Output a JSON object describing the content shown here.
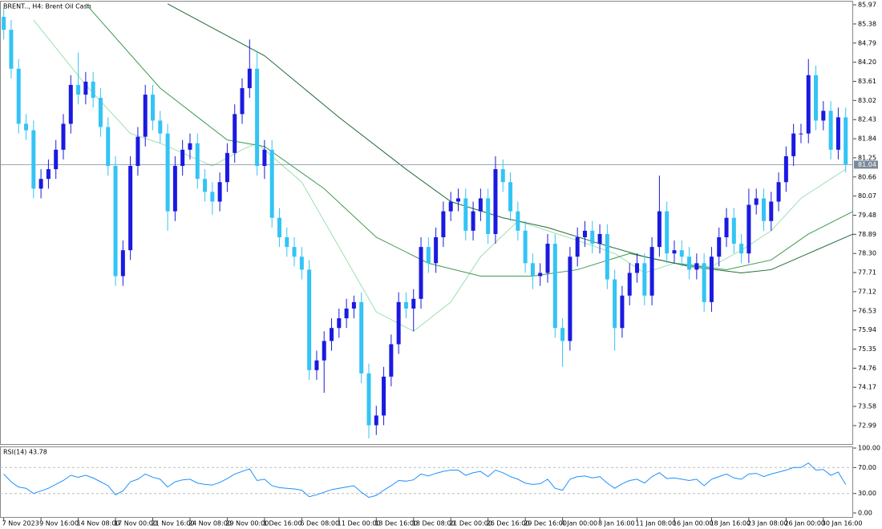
{
  "chart_data": {
    "type": "candlestick",
    "title": "BRENT.., H4:  Brent Oil Cash",
    "up_color": "#1a1ae0",
    "down_color": "#33c4f5",
    "xlim": [
      -0.5,
      114
    ],
    "xticks": [
      {
        "value": 0,
        "label": "7 Nov 2023"
      },
      {
        "value": 5,
        "label": "9 Nov 16:00"
      },
      {
        "value": 10,
        "label": "14 Nov 08:00"
      },
      {
        "value": 15,
        "label": "17 Nov 00:00"
      },
      {
        "value": 20,
        "label": "21 Nov 16:00"
      },
      {
        "value": 25,
        "label": "24 Nov 08:00"
      },
      {
        "value": 30,
        "label": "29 Nov 00:00"
      },
      {
        "value": 35,
        "label": "1 Dec 16:00"
      },
      {
        "value": 40,
        "label": "6 Dec 08:00"
      },
      {
        "value": 45,
        "label": "11 Dec 00:00"
      },
      {
        "value": 50,
        "label": "13 Dec 16:00"
      },
      {
        "value": 55,
        "label": "18 Dec 08:00"
      },
      {
        "value": 60,
        "label": "21 Dec 00:00"
      },
      {
        "value": 65,
        "label": "26 Dec 16:00"
      },
      {
        "value": 70,
        "label": "29 Dec 16:00"
      },
      {
        "value": 75,
        "label": "4 Jan 00:00"
      },
      {
        "value": 80,
        "label": "8 Jan 16:00"
      },
      {
        "value": 85,
        "label": "11 Jan 08:00"
      },
      {
        "value": 90,
        "label": "16 Jan 00:00"
      },
      {
        "value": 95,
        "label": "18 Jan 16:00"
      },
      {
        "value": 100,
        "label": "23 Jan 08:00"
      },
      {
        "value": 105,
        "label": "26 Jan 00:00"
      },
      {
        "value": 110,
        "label": "30 Jan 16:00"
      }
    ],
    "ylim": [
      72.42,
      86.07
    ],
    "yticks": [
      85.97,
      85.38,
      84.79,
      {
        "value": 84.2,
        "label": "84.20"
      },
      83.61,
      83.02,
      82.43,
      81.84,
      81.25,
      80.66,
      80.07,
      79.48,
      78.89,
      {
        "value": 78.3,
        "label": "78.30"
      },
      77.71,
      77.12,
      76.53,
      75.94,
      75.35,
      74.76,
      74.17,
      73.58,
      72.99
    ],
    "current_price": 81.04,
    "open": [
      85.6,
      85.2,
      84.0,
      82.3,
      82.1,
      80.3,
      80.6,
      80.9,
      81.5,
      82.3,
      83.5,
      83.2,
      83.6,
      83.1,
      82.2,
      81.0,
      77.6,
      78.4,
      81.0,
      81.9,
      83.2,
      82.4,
      82.0,
      79.6,
      81.0,
      81.5,
      81.7,
      80.6,
      80.2,
      79.9,
      80.5,
      81.4,
      82.6,
      83.4,
      84.0,
      81.0,
      81.5,
      79.4,
      78.8,
      78.5,
      78.2,
      77.8,
      74.7,
      75.0,
      75.6,
      76.0,
      76.3,
      76.6,
      76.8,
      74.6,
      73.0,
      73.3,
      74.5,
      75.5,
      76.8,
      76.6,
      76.9,
      78.5,
      78.0,
      78.8,
      79.6,
      79.9,
      80.0,
      79.0,
      79.6,
      80.0,
      78.9,
      80.9,
      80.5,
      79.6,
      79.0,
      78.0,
      77.6,
      77.7,
      78.6,
      76.0,
      75.6,
      78.2,
      78.8,
      79.0,
      78.6,
      78.9,
      77.5,
      76.0,
      77.0,
      77.7,
      78.0,
      77.0,
      78.5,
      79.6,
      78.3,
      78.4,
      78.2,
      77.8,
      78.0,
      76.8,
      78.2,
      78.8,
      79.4,
      78.6,
      78.3,
      79.8,
      80.0,
      79.3,
      79.9,
      80.5,
      81.3,
      82.0,
      82.0,
      83.8,
      82.4,
      82.7,
      81.5,
      82.5
    ],
    "high": [
      85.9,
      85.5,
      84.3,
      82.6,
      82.4,
      80.9,
      81.2,
      81.8,
      82.6,
      83.8,
      84.5,
      83.9,
      83.9,
      83.4,
      82.5,
      81.3,
      78.7,
      81.3,
      82.2,
      83.5,
      83.5,
      82.7,
      82.3,
      81.3,
      81.8,
      82.0,
      82.0,
      80.9,
      80.5,
      80.8,
      81.7,
      82.9,
      83.7,
      84.9,
      84.5,
      81.8,
      81.8,
      79.7,
      79.1,
      78.8,
      78.5,
      78.1,
      75.3,
      75.9,
      76.3,
      76.6,
      76.9,
      77.0,
      77.1,
      74.9,
      73.6,
      74.8,
      75.8,
      77.1,
      77.1,
      77.2,
      78.8,
      78.8,
      79.1,
      79.9,
      80.2,
      80.3,
      80.3,
      79.9,
      80.3,
      80.3,
      81.3,
      81.2,
      80.8,
      79.9,
      79.3,
      78.3,
      78.0,
      78.9,
      78.9,
      76.3,
      78.5,
      79.1,
      79.3,
      79.3,
      79.2,
      79.2,
      77.8,
      77.3,
      78.0,
      78.3,
      78.3,
      78.8,
      80.7,
      79.9,
      78.7,
      78.7,
      78.5,
      78.3,
      78.3,
      78.5,
      79.1,
      79.7,
      79.7,
      78.9,
      80.3,
      80.3,
      80.3,
      80.2,
      80.8,
      81.6,
      82.3,
      82.3,
      84.3,
      84.1,
      83.0,
      83.0,
      82.8,
      82.8
    ],
    "low": [
      84.9,
      83.7,
      82.0,
      81.8,
      80.0,
      80.0,
      80.3,
      80.6,
      81.2,
      82.0,
      82.9,
      82.9,
      82.8,
      81.9,
      80.7,
      77.3,
      77.3,
      78.1,
      80.7,
      81.6,
      82.1,
      81.7,
      79.0,
      79.3,
      80.7,
      81.2,
      80.3,
      79.9,
      79.5,
      79.6,
      80.2,
      81.1,
      82.3,
      83.1,
      80.7,
      80.6,
      79.1,
      78.5,
      78.2,
      77.9,
      77.5,
      74.4,
      74.4,
      74.0,
      75.3,
      75.7,
      76.0,
      76.3,
      74.3,
      72.6,
      72.7,
      73.0,
      74.2,
      75.2,
      76.3,
      75.9,
      76.6,
      77.7,
      77.7,
      78.5,
      79.3,
      79.6,
      78.7,
      78.7,
      79.3,
      78.6,
      78.6,
      80.2,
      79.3,
      78.7,
      77.7,
      77.2,
      77.3,
      77.4,
      75.7,
      74.8,
      75.3,
      77.9,
      78.5,
      78.3,
      78.3,
      77.2,
      75.3,
      75.7,
      76.7,
      77.4,
      76.7,
      76.7,
      78.2,
      78.0,
      78.0,
      77.9,
      77.5,
      77.5,
      76.5,
      76.5,
      77.9,
      78.5,
      78.3,
      78.0,
      78.0,
      79.5,
      79.0,
      79.0,
      79.6,
      80.2,
      81.0,
      81.7,
      81.7,
      82.1,
      82.1,
      81.2,
      81.2,
      80.8
    ],
    "close": [
      85.2,
      84.0,
      82.3,
      82.1,
      80.3,
      80.6,
      80.9,
      81.5,
      82.3,
      83.5,
      83.2,
      83.6,
      83.1,
      82.2,
      81.0,
      77.6,
      78.4,
      81.0,
      81.9,
      83.2,
      82.4,
      82.0,
      79.6,
      81.0,
      81.5,
      81.7,
      80.6,
      80.2,
      79.9,
      80.5,
      81.4,
      82.6,
      83.4,
      84.0,
      81.0,
      81.5,
      79.4,
      78.8,
      78.5,
      78.2,
      77.8,
      74.7,
      75.0,
      75.6,
      76.0,
      76.3,
      76.6,
      76.8,
      74.6,
      73.0,
      73.3,
      74.5,
      75.5,
      76.8,
      76.6,
      76.9,
      78.5,
      78.0,
      78.8,
      79.6,
      79.9,
      80.0,
      79.0,
      79.6,
      80.0,
      78.9,
      80.9,
      80.5,
      79.6,
      79.0,
      78.0,
      77.6,
      77.7,
      78.6,
      76.0,
      75.6,
      78.2,
      78.8,
      79.0,
      78.6,
      78.9,
      77.5,
      76.0,
      77.0,
      77.7,
      78.0,
      77.0,
      78.5,
      79.6,
      78.3,
      78.4,
      78.2,
      77.8,
      78.0,
      76.8,
      78.2,
      78.8,
      79.4,
      78.6,
      78.3,
      79.8,
      80.0,
      79.3,
      79.9,
      80.5,
      81.3,
      82.0,
      82.0,
      83.8,
      82.4,
      82.7,
      81.5,
      82.5,
      81.04
    ],
    "moving_averages": [
      {
        "color": "#9be0b0",
        "x": [
          4,
          11,
          17,
          21,
          28,
          32,
          34,
          40,
          45,
          50,
          55,
          60,
          64,
          69,
          73,
          77,
          82,
          86,
          90,
          95,
          99,
          103,
          107,
          113
        ],
        "values": [
          85.5,
          83.5,
          82.0,
          81.7,
          81.0,
          81.5,
          81.7,
          80.5,
          78.5,
          76.5,
          75.9,
          76.8,
          78.2,
          79.3,
          79.0,
          78.7,
          78.3,
          77.7,
          78.0,
          77.9,
          78.4,
          79.0,
          80.0,
          80.9
        ]
      },
      {
        "color": "#3c9a50",
        "x": [
          11,
          21,
          30,
          35,
          43,
          50,
          57,
          64,
          71,
          77,
          84,
          90,
          97,
          103,
          108,
          114
        ],
        "values": [
          86.0,
          83.4,
          81.8,
          81.6,
          80.3,
          78.8,
          78.0,
          77.6,
          77.6,
          77.8,
          78.3,
          78.0,
          77.8,
          78.1,
          78.9,
          79.6
        ]
      },
      {
        "color": "#1f6a35",
        "x": [
          22,
          35,
          45,
          54,
          60,
          67,
          73,
          80,
          86,
          92,
          99,
          103,
          108,
          114
        ],
        "values": [
          86.0,
          84.4,
          82.5,
          80.9,
          79.9,
          79.4,
          79.1,
          78.6,
          78.2,
          77.9,
          77.7,
          77.8,
          78.3,
          78.9
        ]
      }
    ],
    "rsi": {
      "title": "RSI(14) 43.78",
      "color": "#1e90ff",
      "ylim": [
        0,
        100
      ],
      "yticks": [
        {
          "value": 100,
          "label": "100.00"
        },
        {
          "value": 70,
          "label": "70.00"
        },
        {
          "value": 30,
          "label": "30.00"
        },
        {
          "value": 0,
          "label": "0.00"
        }
      ],
      "levels": [
        70,
        30
      ],
      "values": [
        60,
        48,
        40,
        38,
        30,
        34,
        38,
        44,
        50,
        58,
        55,
        58,
        54,
        48,
        42,
        28,
        34,
        48,
        52,
        60,
        55,
        52,
        40,
        48,
        51,
        52,
        46,
        44,
        43,
        47,
        53,
        60,
        64,
        68,
        50,
        52,
        42,
        39,
        38,
        37,
        35,
        25,
        28,
        32,
        36,
        38,
        40,
        42,
        32,
        24,
        27,
        35,
        42,
        50,
        49,
        51,
        60,
        57,
        61,
        64,
        66,
        66,
        58,
        62,
        64,
        56,
        66,
        62,
        56,
        52,
        46,
        44,
        45,
        52,
        38,
        35,
        52,
        56,
        57,
        54,
        56,
        46,
        38,
        45,
        50,
        52,
        46,
        56,
        62,
        53,
        54,
        52,
        50,
        52,
        42,
        52,
        56,
        60,
        54,
        52,
        60,
        61,
        56,
        60,
        63,
        66,
        70,
        70,
        77,
        66,
        67,
        58,
        63,
        43.78
      ]
    }
  }
}
